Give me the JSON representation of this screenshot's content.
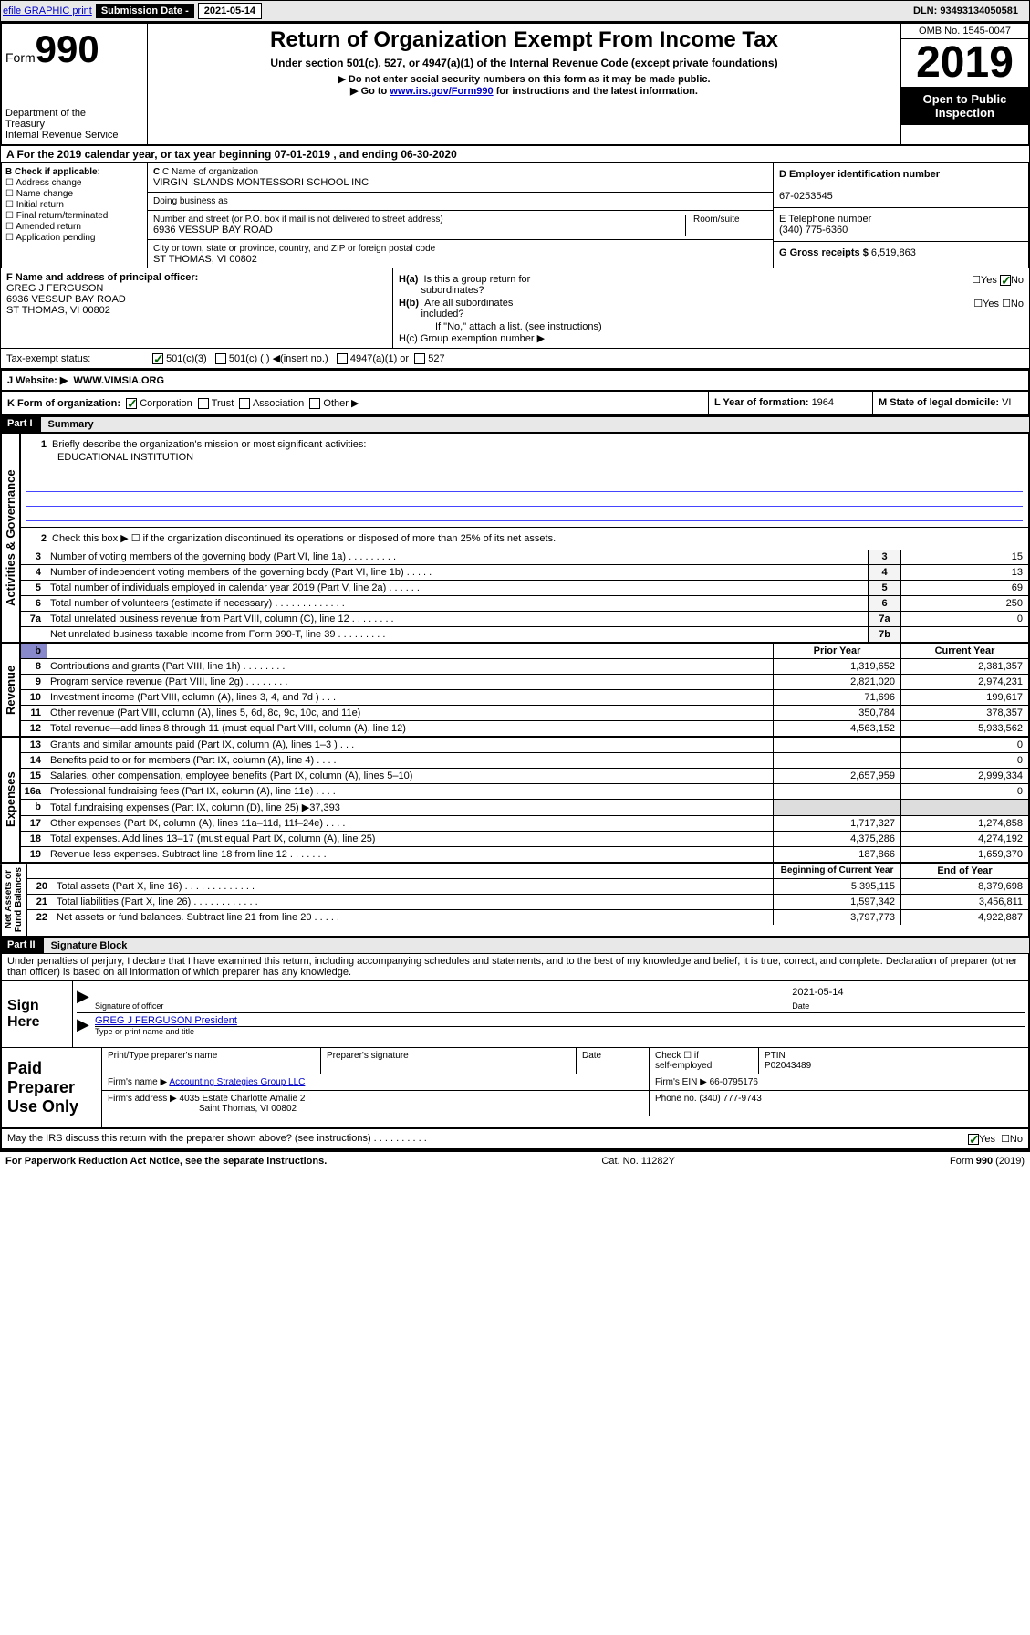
{
  "header": {
    "efile": "efile GRAPHIC print",
    "sub_date_label": "Submission Date - 2021-05-14",
    "dln": "DLN: 93493134050581"
  },
  "form": {
    "form_word": "Form",
    "form_num": "990",
    "dept": "Department of the Treasury\nInternal Revenue Service",
    "title": "Return of Organization Exempt From Income Tax",
    "subtitle": "Under section 501(c), 527, or 4947(a)(1) of the Internal Revenue Code (except private foundations)",
    "note1": "▶ Do not enter social security numbers on this form as it may be made public.",
    "note2_pre": "▶ Go to ",
    "note2_link": "www.irs.gov/Form990",
    "note2_post": " for instructions and the latest information.",
    "omb": "OMB No. 1545-0047",
    "year": "2019",
    "open_public": "Open to Public Inspection"
  },
  "row_a": "A For the 2019 calendar year, or tax year beginning 07-01-2019    , and ending 06-30-2020",
  "b": {
    "label": "B Check if applicable:",
    "items": [
      "Address change",
      "Name change",
      "Initial return",
      "Final return/terminated",
      "Amended return",
      "Application pending"
    ]
  },
  "c": {
    "name_label": "C Name of organization",
    "name": "VIRGIN ISLANDS MONTESSORI SCHOOL INC",
    "dba_label": "Doing business as",
    "dba": "",
    "addr_label": "Number and street (or P.O. box if mail is not delivered to street address)",
    "addr": "6936 VESSUP BAY ROAD",
    "room_label": "Room/suite",
    "city_label": "City or town, state or province, country, and ZIP or foreign postal code",
    "city": "ST THOMAS, VI  00802"
  },
  "d": {
    "label": "D Employer identification number",
    "val": "67-0253545"
  },
  "e": {
    "label": "E Telephone number",
    "val": "(340) 775-6360"
  },
  "g": {
    "label": "G Gross receipts $ ",
    "val": "6,519,863"
  },
  "f": {
    "label": "F  Name and address of principal officer:",
    "name": "GREG J FERGUSON",
    "addr1": "6936 VESSUP BAY ROAD",
    "addr2": "ST THOMAS, VI  00802"
  },
  "h": {
    "a": "H(a)  Is this a group return for subordinates?",
    "b": "H(b)  Are all subordinates included?",
    "b_note": "If \"No,\" attach a list. (see instructions)",
    "c": "H(c)  Group exemption number ▶"
  },
  "tax_status": {
    "label": "Tax-exempt status:",
    "o1": "501(c)(3)",
    "o2": "501(c) (   ) ◀(insert no.)",
    "o3": "4947(a)(1) or",
    "o4": "527"
  },
  "j": {
    "label": "J   Website: ▶",
    "val": "WWW.VIMSIA.ORG"
  },
  "k": "K Form of organization:",
  "k_opts": [
    "Corporation",
    "Trust",
    "Association",
    "Other ▶"
  ],
  "l": {
    "label": "L Year of formation: ",
    "val": "1964"
  },
  "m": {
    "label": "M State of legal domicile: ",
    "val": "VI"
  },
  "part1": {
    "hdr": "Part I",
    "title": "Summary",
    "line1": "Briefly describe the organization's mission or most significant activities:",
    "mission": "EDUCATIONAL INSTITUTION",
    "line2": "Check this box ▶ ☐  if the organization discontinued its operations or disposed of more than 25% of its net assets.",
    "lines_ag": [
      {
        "n": "3",
        "t": "Number of voting members of the governing body (Part VI, line 1a)  .   .   .   .   .   .   .   .   .",
        "box": "3",
        "v": "15"
      },
      {
        "n": "4",
        "t": "Number of independent voting members of the governing body (Part VI, line 1b)  .   .   .   .   .",
        "box": "4",
        "v": "13"
      },
      {
        "n": "5",
        "t": "Total number of individuals employed in calendar year 2019 (Part V, line 2a)  .   .   .   .   .   .",
        "box": "5",
        "v": "69"
      },
      {
        "n": "6",
        "t": "Total number of volunteers (estimate if necessary)   .   .   .   .   .   .   .   .   .   .   .   .   .",
        "box": "6",
        "v": "250"
      },
      {
        "n": "7a",
        "t": "Total unrelated business revenue from Part VIII, column (C), line 12  .   .   .   .   .   .   .   .",
        "box": "7a",
        "v": "0"
      },
      {
        "n": "",
        "t": "Net unrelated business taxable income from Form 990-T, line 39   .   .   .   .   .   .   .   .   .",
        "box": "7b",
        "v": ""
      }
    ],
    "col_hdrs": {
      "prior": "Prior Year",
      "current": "Current Year"
    },
    "revenue": [
      {
        "n": "8",
        "t": "Contributions and grants (Part VIII, line 1h)   .   .   .   .   .   .   .   .",
        "p": "1,319,652",
        "c": "2,381,357"
      },
      {
        "n": "9",
        "t": "Program service revenue (Part VIII, line 2g)   .   .   .   .   .   .   .   .",
        "p": "2,821,020",
        "c": "2,974,231"
      },
      {
        "n": "10",
        "t": "Investment income (Part VIII, column (A), lines 3, 4, and 7d )   .   .   .",
        "p": "71,696",
        "c": "199,617"
      },
      {
        "n": "11",
        "t": "Other revenue (Part VIII, column (A), lines 5, 6d, 8c, 9c, 10c, and 11e)",
        "p": "350,784",
        "c": "378,357"
      },
      {
        "n": "12",
        "t": "Total revenue—add lines 8 through 11 (must equal Part VIII, column (A), line 12)",
        "p": "4,563,152",
        "c": "5,933,562"
      }
    ],
    "expenses": [
      {
        "n": "13",
        "t": "Grants and similar amounts paid (Part IX, column (A), lines 1–3 )   .   .   .",
        "p": "",
        "c": "0"
      },
      {
        "n": "14",
        "t": "Benefits paid to or for members (Part IX, column (A), line 4)   .   .   .   .",
        "p": "",
        "c": "0"
      },
      {
        "n": "15",
        "t": "Salaries, other compensation, employee benefits (Part IX, column (A), lines 5–10)",
        "p": "2,657,959",
        "c": "2,999,334"
      },
      {
        "n": "16a",
        "t": "Professional fundraising fees (Part IX, column (A), line 11e)   .   .   .   .",
        "p": "",
        "c": "0"
      },
      {
        "n": "b",
        "t": "Total fundraising expenses (Part IX, column (D), line 25) ▶37,393",
        "p": null,
        "c": null
      },
      {
        "n": "17",
        "t": "Other expenses (Part IX, column (A), lines 11a–11d, 11f–24e)   .   .   .   .",
        "p": "1,717,327",
        "c": "1,274,858"
      },
      {
        "n": "18",
        "t": "Total expenses. Add lines 13–17 (must equal Part IX, column (A), line 25)",
        "p": "4,375,286",
        "c": "4,274,192"
      },
      {
        "n": "19",
        "t": "Revenue less expenses. Subtract line 18 from line 12  .   .   .   .   .   .   .",
        "p": "187,866",
        "c": "1,659,370"
      }
    ],
    "na_hdrs": {
      "begin": "Beginning of Current Year",
      "end": "End of Year"
    },
    "netassets": [
      {
        "n": "20",
        "t": "Total assets (Part X, line 16)   .   .   .   .   .   .   .   .   .   .   .   .   .",
        "p": "5,395,115",
        "c": "8,379,698"
      },
      {
        "n": "21",
        "t": "Total liabilities (Part X, line 26)   .   .   .   .   .   .   .   .   .   .   .   .",
        "p": "1,597,342",
        "c": "3,456,811"
      },
      {
        "n": "22",
        "t": "Net assets or fund balances. Subtract line 21 from line 20  .   .   .   .   .",
        "p": "3,797,773",
        "c": "4,922,887"
      }
    ]
  },
  "part2": {
    "hdr": "Part II",
    "title": "Signature Block",
    "perjury": "Under penalties of perjury, I declare that I have examined this return, including accompanying schedules and statements, and to the best of my knowledge and belief, it is true, correct, and complete. Declaration of preparer (other than officer) is based on all information of which preparer has any knowledge."
  },
  "sign": {
    "label": "Sign Here",
    "sig_officer": "Signature of officer",
    "date": "2021-05-14",
    "date_label": "Date",
    "name": "GREG J FERGUSON  President",
    "name_label": "Type or print name and title"
  },
  "paid": {
    "label": "Paid Preparer Use Only",
    "print_label": "Print/Type preparer's name",
    "sig_label": "Preparer's signature",
    "date_label": "Date",
    "check_label": "Check ☐ if self-employed",
    "ptin_label": "PTIN",
    "ptin": "P02043489",
    "firm_name_label": "Firm's name     ▶",
    "firm_name": "Accounting Strategies Group LLC",
    "firm_ein_label": "Firm's EIN ▶",
    "firm_ein": "66-0795176",
    "firm_addr_label": "Firm's address ▶",
    "firm_addr1": "4035 Estate Charlotte Amalie 2",
    "firm_addr2": "Saint Thomas, VI  00802",
    "phone_label": "Phone no. ",
    "phone": "(340) 777-9743"
  },
  "discuss": "May the IRS discuss this return with the preparer shown above? (see instructions)   .   .   .   .   .   .   .   .   .   .",
  "footer": {
    "left": "For Paperwork Reduction Act Notice, see the separate instructions.",
    "mid": "Cat. No. 11282Y",
    "right": "Form 990 (2019)"
  }
}
